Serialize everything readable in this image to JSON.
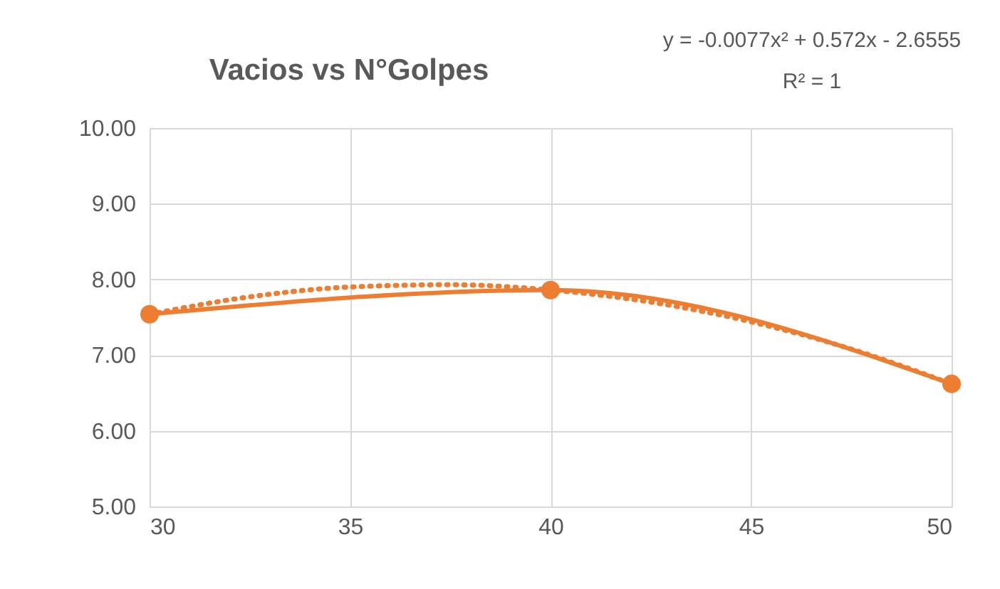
{
  "chart_data": {
    "type": "line",
    "title": "Vacios vs N°Golpes",
    "x": [
      30,
      40,
      50
    ],
    "series": [
      {
        "color": "#ed7d31",
        "marker": "circle",
        "line_style": "solid",
        "values": [
          7.54,
          7.86,
          6.62
        ]
      },
      {
        "color": "#ed7d31",
        "marker": "none",
        "line_style": "dotted",
        "x": [
          30,
          32.5,
          35,
          37.5,
          40,
          42.5,
          45,
          47.5,
          50
        ],
        "values": [
          7.54,
          7.77,
          7.9,
          7.93,
          7.86,
          7.7,
          7.44,
          7.08,
          6.62
        ]
      }
    ],
    "xlim": [
      30,
      50
    ],
    "xticks": [
      30,
      35,
      40,
      45,
      50
    ],
    "ylim": [
      5,
      10
    ],
    "yticks": [
      {
        "value": 5,
        "label": "5.00"
      },
      {
        "value": 6,
        "label": "6.00"
      },
      {
        "value": 7,
        "label": "7.00"
      },
      {
        "value": 8,
        "label": "8.00"
      },
      {
        "value": 9,
        "label": "9.00"
      },
      {
        "value": 10,
        "label": "10.00"
      }
    ],
    "grid": true,
    "annotations": [
      "y = -0.0077x² + 0.572x - 2.6555",
      "R² = 1"
    ]
  }
}
